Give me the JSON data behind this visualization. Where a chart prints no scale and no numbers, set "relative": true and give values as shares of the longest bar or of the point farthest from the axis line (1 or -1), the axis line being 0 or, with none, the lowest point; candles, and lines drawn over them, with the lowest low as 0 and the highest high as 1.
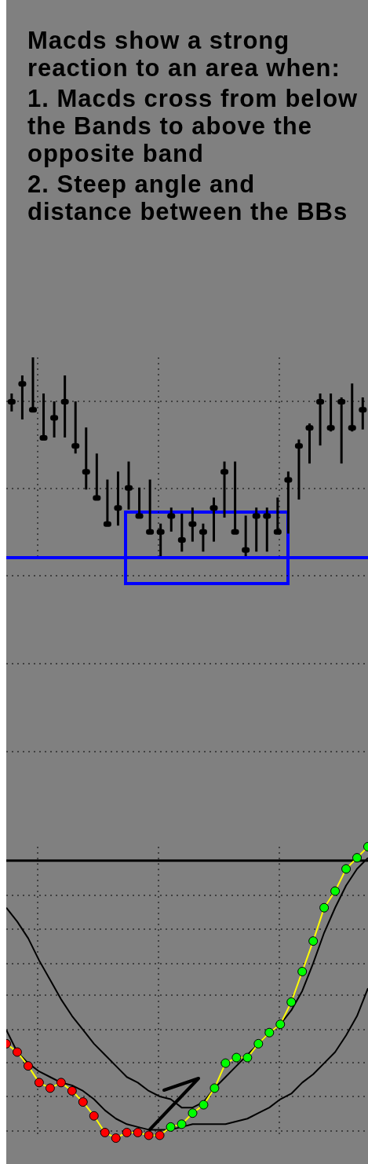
{
  "chart_data": [
    {
      "type": "candlestick",
      "title": "Macds show a strong reaction to an area when:",
      "annotations": [
        "1. Macds cross from below the Bands to above the opposite band",
        "2. Steep angle and distance between the BBs"
      ],
      "relative": true,
      "grid": true,
      "color": "#000000",
      "categories": [
        null,
        null,
        null,
        null,
        null,
        null,
        null,
        null,
        null,
        null,
        null,
        null,
        null,
        null,
        null,
        null,
        null,
        null,
        null,
        null,
        null,
        null,
        null,
        null,
        null,
        null,
        null,
        null,
        null,
        null,
        null,
        null,
        null,
        null
      ],
      "ohlc": [
        [
          0.78,
          0.82,
          0.73,
          0.78
        ],
        [
          0.87,
          0.91,
          0.69,
          0.87
        ],
        [
          0.74,
          1.0,
          0.74,
          0.74
        ],
        [
          0.6,
          0.82,
          0.6,
          0.6
        ],
        [
          0.7,
          0.78,
          0.6,
          0.7
        ],
        [
          0.78,
          0.91,
          0.6,
          0.78
        ],
        [
          0.56,
          0.78,
          0.52,
          0.56
        ],
        [
          0.43,
          0.65,
          0.34,
          0.43
        ],
        [
          0.3,
          0.52,
          0.3,
          0.3
        ],
        [
          0.17,
          0.39,
          0.16,
          0.17
        ],
        [
          0.25,
          0.43,
          0.16,
          0.25
        ],
        [
          0.35,
          0.48,
          0.24,
          0.35
        ],
        [
          0.21,
          0.35,
          0.21,
          0.21
        ],
        [
          0.13,
          0.39,
          0.13,
          0.13
        ],
        [
          0.13,
          0.17,
          0.0,
          0.13
        ],
        [
          0.21,
          0.25,
          0.13,
          0.21
        ],
        [
          0.09,
          0.22,
          0.03,
          0.09
        ],
        [
          0.17,
          0.25,
          0.08,
          0.17
        ],
        [
          0.13,
          0.17,
          0.03,
          0.13
        ],
        [
          0.25,
          0.3,
          0.08,
          0.25
        ],
        [
          0.43,
          0.48,
          0.2,
          0.43
        ],
        [
          0.13,
          0.48,
          0.13,
          0.13
        ],
        [
          0.04,
          0.21,
          0.0,
          0.04
        ],
        [
          0.21,
          0.25,
          0.03,
          0.21
        ],
        [
          0.21,
          0.25,
          0.03,
          0.21
        ],
        [
          0.13,
          0.3,
          0.12,
          0.13
        ],
        [
          0.39,
          0.43,
          0.12,
          0.39
        ],
        [
          0.56,
          0.59,
          0.29,
          0.56
        ],
        [
          0.65,
          0.67,
          0.47,
          0.65
        ],
        [
          0.78,
          0.82,
          0.56,
          0.78
        ],
        [
          0.65,
          0.82,
          0.63,
          0.65
        ],
        [
          0.78,
          0.8,
          0.47,
          0.78
        ],
        [
          0.65,
          0.87,
          0.63,
          0.65
        ],
        [
          0.74,
          0.8,
          0.64,
          0.74
        ]
      ],
      "ref_lines": [
        {
          "axis": "y",
          "value": 0,
          "color": "#0000ff"
        }
      ]
    },
    {
      "type": "line",
      "relative": true,
      "grid": true,
      "categories": [
        null,
        null,
        null,
        null,
        null,
        null,
        null,
        null,
        null,
        null,
        null,
        null,
        null,
        null,
        null,
        null,
        null,
        null,
        null,
        null,
        null,
        null,
        null,
        null,
        null,
        null,
        null,
        null,
        null,
        null,
        null,
        null,
        null,
        null
      ],
      "ref_lines": [
        {
          "axis": "y",
          "value": 0,
          "color": "#000000"
        }
      ],
      "series": [
        {
          "color": "#ffff00",
          "marker": "circle",
          "colors": [
            "#ff0000",
            "#ff0000",
            "#ff0000",
            "#ff0000",
            "#ff0000",
            "#ff0000",
            "#ff0000",
            "#ff0000",
            "#ff0000",
            "#ff0000",
            "#ff0000",
            "#ff0000",
            "#ff0000",
            "#ff0000",
            "#ff0000",
            "#00ff00",
            "#00ff00",
            "#00ff00",
            "#00ff00",
            "#00ff00",
            "#00ff00",
            "#00ff00",
            "#00ff00",
            "#00ff00",
            "#00ff00",
            "#00ff00",
            "#00ff00",
            "#00ff00",
            "#00ff00",
            "#00ff00",
            "#00ff00",
            "#00ff00",
            "#00ff00",
            "#00ff00"
          ],
          "values": [
            -0.66,
            -0.69,
            -0.74,
            -0.8,
            -0.82,
            -0.8,
            -0.83,
            -0.87,
            -0.92,
            -0.98,
            -1,
            -0.98,
            -0.98,
            -0.99,
            -0.99,
            -0.96,
            -0.95,
            -0.91,
            -0.88,
            -0.82,
            -0.73,
            -0.71,
            -0.71,
            -0.66,
            -0.62,
            -0.59,
            -0.51,
            -0.4,
            -0.29,
            -0.17,
            -0.11,
            -0.03,
            0.01,
            0.05
          ]
        },
        {
          "color": "#000000",
          "marker": "none",
          "values": [
            -0.17,
            -0.22,
            -0.28,
            -0.36,
            -0.43,
            -0.5,
            -0.56,
            -0.61,
            -0.66,
            -0.7,
            -0.74,
            -0.78,
            -0.8,
            -0.83,
            -0.85,
            -0.86,
            -0.89,
            -0.89,
            -0.87,
            -0.82,
            -0.78,
            -0.74,
            -0.7,
            -0.66,
            -0.62,
            -0.59,
            -0.54,
            -0.47,
            -0.37,
            -0.26,
            -0.17,
            -0.09,
            -0.03,
            0.01
          ]
        },
        {
          "color": "#000000",
          "marker": "none",
          "values": [
            -0.61,
            -0.69,
            -0.73,
            -0.76,
            -0.78,
            -0.8,
            -0.81,
            -0.83,
            -0.86,
            -0.9,
            -0.93,
            -0.95,
            -0.96,
            -0.97,
            -0.97,
            -0.97,
            -0.96,
            -0.95,
            -0.95,
            -0.95,
            -0.95,
            -0.94,
            -0.93,
            -0.91,
            -0.89,
            -0.86,
            -0.84,
            -0.8,
            -0.77,
            -0.73,
            -0.69,
            -0.63,
            -0.56,
            -0.46
          ]
        }
      ]
    }
  ]
}
